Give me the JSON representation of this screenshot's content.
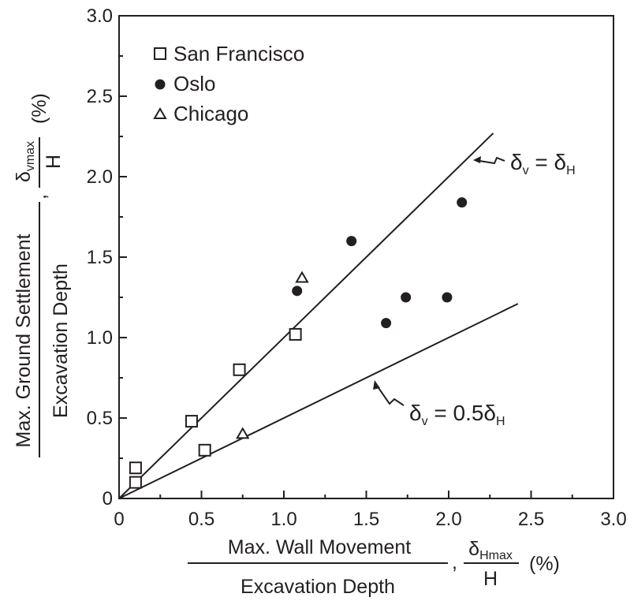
{
  "chart_data": {
    "type": "scatter",
    "x_range": [
      0,
      3.0
    ],
    "y_range": [
      0,
      3.0
    ],
    "x_ticks": [
      "0",
      "0.5",
      "1.0",
      "1.5",
      "2.0",
      "2.5",
      "3.0"
    ],
    "y_ticks": [
      "0",
      "0.5",
      "1.0",
      "1.5",
      "2.0",
      "2.5",
      "3.0"
    ],
    "xlabel": {
      "numerator": "Max. Wall Movement",
      "denominator": "Excavation Depth",
      "fraction_num_main": "δ",
      "fraction_num_sub": "Hmax",
      "fraction_den": "H",
      "unit": "(%)"
    },
    "ylabel": {
      "numerator": "Max. Ground Settlement",
      "denominator": "Excavation Depth",
      "fraction_num_main": "δ",
      "fraction_num_sub": "vmax",
      "fraction_den": "H",
      "unit": "(%)"
    },
    "legend_position": "top-left",
    "series": [
      {
        "name": "San Francisco",
        "marker": "open-square",
        "points": [
          [
            0.1,
            0.19
          ],
          [
            0.1,
            0.1
          ],
          [
            0.44,
            0.48
          ],
          [
            0.52,
            0.3
          ],
          [
            0.73,
            0.8
          ],
          [
            1.07,
            1.02
          ]
        ]
      },
      {
        "name": "Oslo",
        "marker": "filled-circle",
        "points": [
          [
            1.08,
            1.29
          ],
          [
            1.41,
            1.6
          ],
          [
            1.62,
            1.09
          ],
          [
            1.74,
            1.25
          ],
          [
            1.99,
            1.25
          ],
          [
            2.08,
            1.84
          ]
        ]
      },
      {
        "name": "Chicago",
        "marker": "open-triangle",
        "points": [
          [
            0.75,
            0.4
          ],
          [
            1.11,
            1.37
          ]
        ]
      }
    ],
    "reference_lines": [
      {
        "label_main": "δ",
        "label_sub": "v",
        "label_rest": " = δ",
        "label_sub2": "H",
        "slope": 1.0,
        "x_end": 2.27
      },
      {
        "label_main": "δ",
        "label_sub": "v",
        "label_rest": " = 0.5δ",
        "label_sub2": "H",
        "slope": 0.5,
        "x_end": 2.42
      }
    ]
  }
}
